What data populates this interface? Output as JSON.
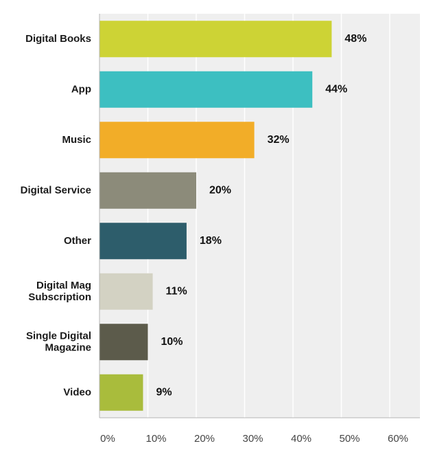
{
  "chart_data": {
    "type": "bar",
    "orientation": "horizontal",
    "categories": [
      "Digital Books",
      "App",
      "Music",
      "Digital Service",
      "Other",
      "Digital Mag Subscription",
      "Single Digital Magazine",
      "Video"
    ],
    "category_lines": [
      [
        "Digital Books"
      ],
      [
        "App"
      ],
      [
        "Music"
      ],
      [
        "Digital Service"
      ],
      [
        "Other"
      ],
      [
        "Digital Mag",
        "Subscription"
      ],
      [
        "Single Digital",
        "Magazine"
      ],
      [
        "Video"
      ]
    ],
    "values": [
      48,
      44,
      32,
      20,
      18,
      11,
      10,
      9
    ],
    "value_labels": [
      "48%",
      "44%",
      "32%",
      "20%",
      "18%",
      "11%",
      "10%",
      "9%"
    ],
    "colors": [
      "#cdd335",
      "#3dbfc1",
      "#f2ad28",
      "#8c8b7a",
      "#2d5d6b",
      "#d3d2c3",
      "#5c5b4b",
      "#a9bc3c"
    ],
    "xlim": [
      0,
      65
    ],
    "xticks": [
      0,
      10,
      20,
      30,
      40,
      50,
      60
    ],
    "xtick_labels": [
      "0%",
      "10%",
      "20%",
      "30%",
      "40%",
      "50%",
      "60%"
    ],
    "grid": true,
    "plot_background": "#efefef",
    "gridline_color": "#ffffff",
    "title": "",
    "xlabel": "",
    "ylabel": ""
  }
}
